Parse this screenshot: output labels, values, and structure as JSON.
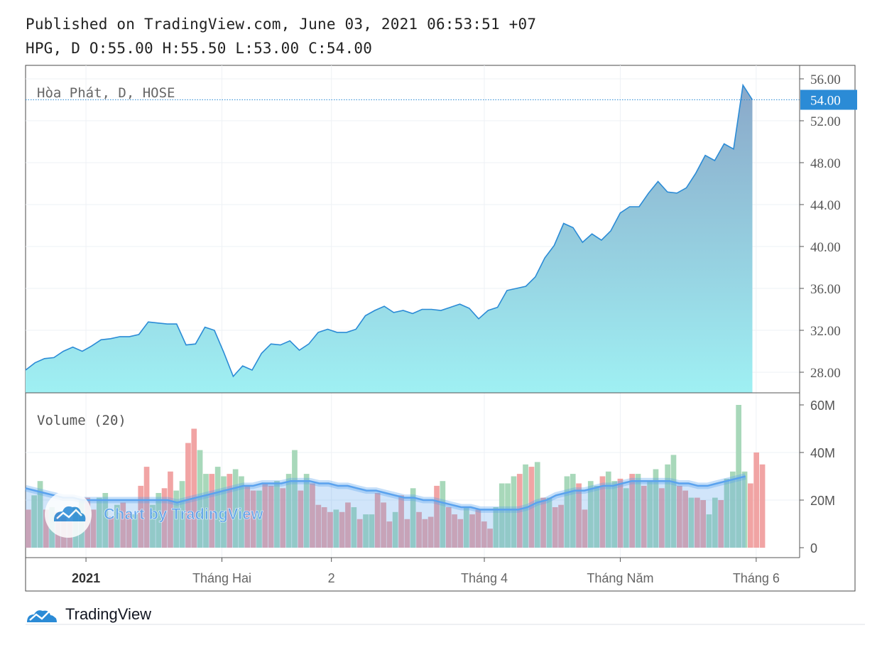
{
  "header": {
    "published": "Published on TradingView.com, June 03, 2021 06:53:51 +07",
    "ohlc": {
      "prefix": "HPG, D",
      "o": "O:55.00",
      "h": "H:55.50",
      "l": "L:53.00",
      "c": "C:54.00"
    }
  },
  "colors": {
    "line": "#2b8bd6",
    "area_top": "#8aa8c9",
    "area_bottom": "#9ff0f3",
    "price_tag": "#2b8bd6",
    "vol_up": "#9fd4b2",
    "vol_down": "#ef9a9a",
    "vol_ma": "#5aa2ee"
  },
  "watermark": {
    "text": "Chart by TradingView"
  },
  "footer": {
    "brand": "TradingView"
  },
  "chart_data": [
    {
      "type": "area",
      "title": "Hòa Phát, D, HOSE",
      "y_ticks": [
        "56.00",
        "52.00",
        "48.00",
        "44.00",
        "40.00",
        "36.00",
        "32.00",
        "28.00"
      ],
      "ylim": [
        26.1,
        57.0
      ],
      "last_price": "54.00",
      "x_ticks": [
        {
          "label": "2021",
          "bold": true,
          "x": 3.2
        },
        {
          "label": "Tháng Hai",
          "bold": false,
          "x": 10.4
        },
        {
          "label": "2",
          "bold": false,
          "x": 16.2
        },
        {
          "label": "Tháng 4",
          "bold": false,
          "x": 24.3
        },
        {
          "label": "Tháng Năm",
          "bold": false,
          "x": 31.5
        },
        {
          "label": "Tháng 6",
          "bold": false,
          "x": 38.7
        }
      ],
      "x": [
        0,
        0.5,
        1,
        1.5,
        2,
        2.5,
        3,
        3.5,
        4,
        4.5,
        5,
        5.5,
        6,
        6.5,
        7,
        7.5,
        8,
        8.5,
        9,
        9.5,
        10,
        10.5,
        11,
        11.5,
        12,
        12.5,
        13,
        13.5,
        14,
        14.5,
        15,
        15.5,
        16,
        16.5,
        17,
        17.5,
        18,
        18.5,
        19,
        19.5,
        20,
        20.5,
        21,
        21.5,
        22,
        22.5,
        23,
        23.5,
        24,
        24.5,
        25,
        25.5,
        26,
        26.5,
        27,
        27.5,
        28,
        28.5,
        29,
        29.5,
        30,
        30.5,
        31,
        31.5,
        32,
        32.5,
        33,
        33.5,
        34,
        34.5,
        35,
        35.5,
        36,
        36.5,
        37,
        37.5,
        38,
        38.5
      ],
      "values": [
        28.2,
        28.9,
        29.3,
        29.4,
        30.0,
        30.4,
        30.0,
        30.5,
        31.1,
        31.2,
        31.4,
        31.4,
        31.6,
        32.8,
        32.7,
        32.6,
        32.6,
        30.6,
        30.7,
        32.3,
        32.0,
        29.9,
        27.6,
        28.6,
        28.2,
        29.8,
        30.7,
        30.6,
        31.0,
        30.1,
        30.7,
        31.8,
        32.1,
        31.8,
        31.8,
        32.1,
        33.4,
        33.9,
        34.3,
        33.7,
        33.9,
        33.6,
        34.0,
        34.0,
        33.9,
        34.2,
        34.5,
        34.1,
        33.1,
        33.9,
        34.2,
        35.8,
        36.0,
        36.2,
        37.1,
        38.9,
        40.1,
        42.2,
        41.8,
        40.4,
        41.2,
        40.6,
        41.5,
        43.2,
        43.8,
        43.8,
        45.1,
        46.2,
        45.2,
        45.1,
        45.6,
        47.0,
        48.7,
        48.2,
        49.8,
        49.3,
        55.4,
        54.0
      ]
    },
    {
      "type": "bar",
      "title": "Volume (20)",
      "y_ticks": [
        "60M",
        "40M",
        "20M",
        "0"
      ],
      "ylim": [
        0,
        62
      ],
      "values": [
        16,
        22,
        28,
        16,
        17,
        15,
        13,
        11,
        17,
        20,
        21,
        16,
        21,
        23,
        13,
        18,
        19,
        15,
        14,
        26,
        34,
        18,
        23,
        25,
        32,
        24,
        28,
        44,
        50,
        41,
        31,
        31,
        34,
        30,
        31,
        33,
        30,
        26,
        24,
        24,
        27,
        26,
        28,
        25,
        31,
        41,
        24,
        31,
        27,
        18,
        17,
        15,
        16,
        15,
        19,
        17,
        12,
        14,
        14,
        23,
        19,
        11,
        15,
        22,
        12,
        25,
        15,
        12,
        13,
        26,
        28,
        17,
        14,
        12,
        17,
        14,
        16,
        11,
        8,
        17,
        27,
        27,
        30,
        31,
        35,
        34,
        36,
        21,
        21,
        17,
        18,
        30,
        31,
        27,
        16,
        28,
        26,
        30,
        32,
        28,
        29,
        25,
        31,
        31,
        26,
        28,
        33,
        25,
        35,
        39,
        26,
        24,
        21,
        21,
        20,
        14,
        21,
        20,
        29,
        32,
        60,
        32,
        27,
        40,
        35
      ],
      "up": [
        0,
        1,
        1,
        0,
        1,
        0,
        0,
        0,
        1,
        1,
        0,
        0,
        1,
        1,
        0,
        1,
        0,
        0,
        1,
        0,
        0,
        1,
        1,
        0,
        0,
        1,
        1,
        0,
        0,
        1,
        1,
        0,
        1,
        1,
        0,
        1,
        1,
        0,
        0,
        1,
        0,
        0,
        1,
        0,
        1,
        1,
        0,
        1,
        0,
        0,
        0,
        0,
        1,
        0,
        0,
        1,
        0,
        1,
        1,
        0,
        0,
        0,
        1,
        0,
        0,
        1,
        0,
        0,
        0,
        0,
        1,
        0,
        0,
        0,
        1,
        0,
        0,
        0,
        0,
        1,
        1,
        1,
        1,
        0,
        1,
        0,
        1,
        0,
        1,
        0,
        0,
        1,
        1,
        0,
        0,
        1,
        1,
        0,
        1,
        1,
        0,
        1,
        0,
        1,
        0,
        1,
        1,
        0,
        1,
        1,
        0,
        0,
        1,
        0,
        0,
        1,
        1,
        0,
        1,
        1,
        1,
        1,
        0,
        0,
        0
      ],
      "ma": [
        25,
        24,
        23,
        22,
        21,
        21,
        20,
        20,
        20,
        20,
        20,
        20,
        20,
        20,
        20,
        20,
        19,
        20,
        21,
        22,
        23,
        24,
        25,
        26,
        26,
        27,
        27,
        27,
        28,
        28,
        28,
        27,
        27,
        26,
        26,
        25,
        24,
        24,
        23,
        22,
        21,
        21,
        20,
        20,
        19,
        18,
        17,
        17,
        16,
        16,
        16,
        16,
        16,
        17,
        19,
        20,
        22,
        23,
        24,
        24,
        25,
        26,
        26,
        27,
        28,
        28,
        28,
        28,
        28,
        27,
        27,
        26,
        26,
        27,
        28,
        29,
        30
      ],
      "ma_stride": 1.6
    }
  ]
}
